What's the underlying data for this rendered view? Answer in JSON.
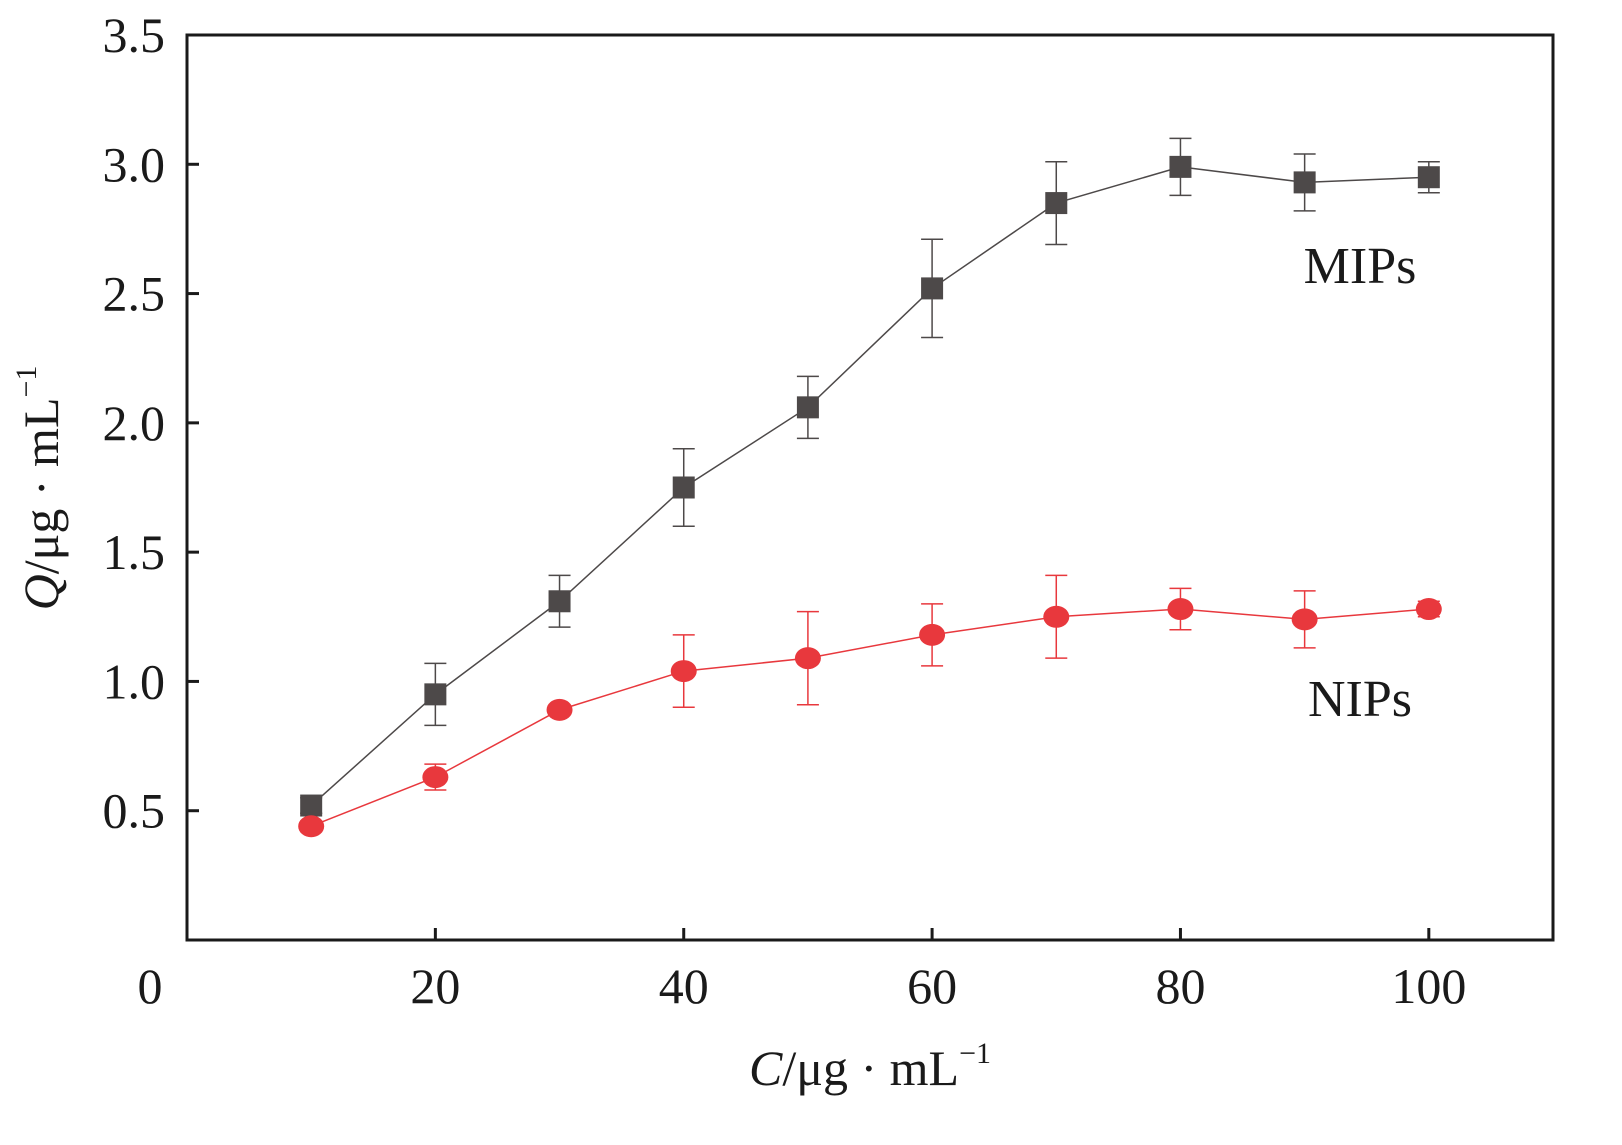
{
  "chart_data": {
    "type": "line",
    "title": "",
    "xlabel": {
      "italic": "C",
      "rest": "/μg · mL",
      "sup": "−1"
    },
    "ylabel": {
      "italic": "Q",
      "rest": "/μg · mL",
      "sup": "−1"
    },
    "xlim": [
      0,
      110
    ],
    "ylim": [
      0,
      3.5
    ],
    "xticks": [
      20,
      40,
      60,
      80,
      100
    ],
    "xtick_labels": [
      "20",
      "40",
      "60",
      "80",
      "100"
    ],
    "yticks": [
      0.5,
      1.0,
      1.5,
      2.0,
      2.5,
      3.0,
      3.5
    ],
    "ytick_labels": [
      "0.5",
      "1.0",
      "1.5",
      "2.0",
      "2.5",
      "3.0",
      "3.5"
    ],
    "origin_label": "0",
    "grid": false,
    "x": [
      10,
      20,
      30,
      40,
      50,
      60,
      70,
      80,
      90,
      100
    ],
    "series": [
      {
        "name": "MIPs",
        "color": "#4d4949",
        "marker": "square",
        "values": [
          0.52,
          0.95,
          1.31,
          1.75,
          2.06,
          2.52,
          2.85,
          2.99,
          2.93,
          2.95
        ],
        "errors": [
          0.03,
          0.12,
          0.1,
          0.15,
          0.12,
          0.19,
          0.16,
          0.11,
          0.11,
          0.06
        ]
      },
      {
        "name": "NIPs",
        "color": "#e8383d",
        "marker": "circle",
        "values": [
          0.44,
          0.63,
          0.89,
          1.04,
          1.09,
          1.18,
          1.25,
          1.28,
          1.24,
          1.28
        ],
        "errors": [
          0.02,
          0.05,
          0.01,
          0.14,
          0.18,
          0.12,
          0.16,
          0.08,
          0.11,
          0.03
        ]
      }
    ],
    "annotations": [
      "MIPs",
      "NIPs"
    ]
  }
}
